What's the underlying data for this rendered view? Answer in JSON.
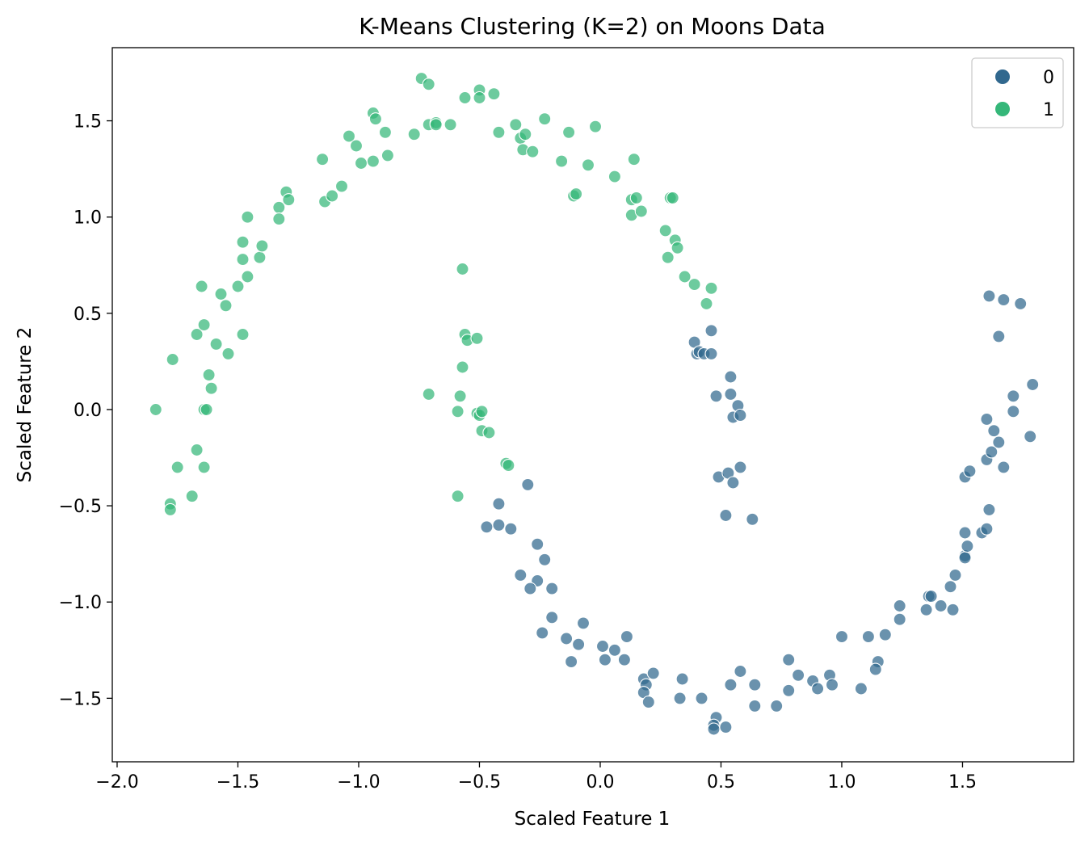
{
  "chart_data": {
    "type": "scatter",
    "title": "K-Means Clustering (K=2) on Moons Data",
    "xlabel": "Scaled Feature 1",
    "ylabel": "Scaled Feature 2",
    "xlim": [
      -2.02,
      1.96
    ],
    "ylim": [
      -1.83,
      1.88
    ],
    "xticks": [
      -2.0,
      -1.5,
      -1.0,
      -0.5,
      0.0,
      0.5,
      1.0,
      1.5
    ],
    "xtick_labels": [
      "−2.0",
      "−1.5",
      "−1.0",
      "−0.5",
      "0.0",
      "0.5",
      "1.0",
      "1.5"
    ],
    "yticks": [
      -1.5,
      -1.0,
      -0.5,
      0.0,
      0.5,
      1.0,
      1.5
    ],
    "ytick_labels": [
      "−1.5",
      "−1.0",
      "−0.5",
      "0.0",
      "0.5",
      "1.0",
      "1.5"
    ],
    "grid": false,
    "legend": {
      "position": "top-right",
      "entries": [
        "0",
        "1"
      ]
    },
    "series": [
      {
        "name": "0",
        "color": "#31688e",
        "points": [
          [
            0.39,
            0.35
          ],
          [
            0.46,
            0.41
          ],
          [
            0.4,
            0.29
          ],
          [
            0.41,
            0.3
          ],
          [
            0.43,
            0.29
          ],
          [
            0.46,
            0.29
          ],
          [
            0.54,
            0.17
          ],
          [
            0.48,
            0.07
          ],
          [
            0.54,
            0.08
          ],
          [
            0.57,
            0.02
          ],
          [
            0.55,
            -0.04
          ],
          [
            0.58,
            -0.03
          ],
          [
            0.49,
            -0.35
          ],
          [
            0.53,
            -0.33
          ],
          [
            0.58,
            -0.3
          ],
          [
            0.55,
            -0.38
          ],
          [
            0.52,
            -0.55
          ],
          [
            0.63,
            -0.57
          ],
          [
            -0.3,
            -0.39
          ],
          [
            -0.42,
            -0.49
          ],
          [
            -0.47,
            -0.61
          ],
          [
            -0.42,
            -0.6
          ],
          [
            -0.37,
            -0.62
          ],
          [
            -0.26,
            -0.7
          ],
          [
            -0.23,
            -0.78
          ],
          [
            -0.33,
            -0.86
          ],
          [
            -0.26,
            -0.89
          ],
          [
            -0.29,
            -0.93
          ],
          [
            -0.2,
            -0.93
          ],
          [
            -0.2,
            -1.08
          ],
          [
            -0.24,
            -1.16
          ],
          [
            -0.14,
            -1.19
          ],
          [
            -0.07,
            -1.11
          ],
          [
            -0.09,
            -1.22
          ],
          [
            -0.12,
            -1.31
          ],
          [
            0.01,
            -1.23
          ],
          [
            0.06,
            -1.25
          ],
          [
            0.11,
            -1.18
          ],
          [
            0.02,
            -1.3
          ],
          [
            0.1,
            -1.3
          ],
          [
            0.18,
            -1.4
          ],
          [
            0.22,
            -1.37
          ],
          [
            0.19,
            -1.43
          ],
          [
            0.18,
            -1.47
          ],
          [
            0.2,
            -1.52
          ],
          [
            0.34,
            -1.4
          ],
          [
            0.33,
            -1.5
          ],
          [
            0.42,
            -1.5
          ],
          [
            0.48,
            -1.6
          ],
          [
            0.47,
            -1.64
          ],
          [
            0.47,
            -1.66
          ],
          [
            0.52,
            -1.65
          ],
          [
            0.54,
            -1.43
          ],
          [
            0.58,
            -1.36
          ],
          [
            0.64,
            -1.43
          ],
          [
            0.64,
            -1.54
          ],
          [
            0.73,
            -1.54
          ],
          [
            0.78,
            -1.3
          ],
          [
            0.82,
            -1.38
          ],
          [
            0.78,
            -1.46
          ],
          [
            0.88,
            -1.41
          ],
          [
            0.9,
            -1.45
          ],
          [
            0.95,
            -1.38
          ],
          [
            0.96,
            -1.43
          ],
          [
            1.0,
            -1.18
          ],
          [
            1.08,
            -1.45
          ],
          [
            1.11,
            -1.18
          ],
          [
            1.15,
            -1.31
          ],
          [
            1.14,
            -1.35
          ],
          [
            1.18,
            -1.17
          ],
          [
            1.24,
            -1.02
          ],
          [
            1.24,
            -1.09
          ],
          [
            1.35,
            -1.04
          ],
          [
            1.36,
            -0.97
          ],
          [
            1.37,
            -0.97
          ],
          [
            1.41,
            -1.02
          ],
          [
            1.45,
            -0.92
          ],
          [
            1.46,
            -1.04
          ],
          [
            1.47,
            -0.86
          ],
          [
            1.51,
            -0.76
          ],
          [
            1.51,
            -0.77
          ],
          [
            1.51,
            -0.64
          ],
          [
            1.52,
            -0.71
          ],
          [
            1.51,
            -0.35
          ],
          [
            1.53,
            -0.32
          ],
          [
            1.58,
            -0.64
          ],
          [
            1.6,
            -0.62
          ],
          [
            1.61,
            -0.52
          ],
          [
            1.6,
            -0.26
          ],
          [
            1.62,
            -0.22
          ],
          [
            1.65,
            -0.17
          ],
          [
            1.67,
            -0.3
          ],
          [
            1.6,
            -0.05
          ],
          [
            1.63,
            -0.11
          ],
          [
            1.71,
            0.07
          ],
          [
            1.71,
            -0.01
          ],
          [
            1.78,
            -0.14
          ],
          [
            1.79,
            0.13
          ],
          [
            1.65,
            0.38
          ],
          [
            1.61,
            0.59
          ],
          [
            1.67,
            0.57
          ],
          [
            1.74,
            0.55
          ]
        ]
      },
      {
        "name": "1",
        "color": "#35b779",
        "points": [
          [
            -1.84,
            0.0
          ],
          [
            -1.77,
            0.26
          ],
          [
            -1.78,
            -0.49
          ],
          [
            -1.78,
            -0.52
          ],
          [
            -1.75,
            -0.3
          ],
          [
            -1.69,
            -0.45
          ],
          [
            -1.67,
            -0.21
          ],
          [
            -1.67,
            0.39
          ],
          [
            -1.65,
            0.64
          ],
          [
            -1.64,
            0.44
          ],
          [
            -1.64,
            -0.3
          ],
          [
            -1.64,
            0.0
          ],
          [
            -1.63,
            0.0
          ],
          [
            -1.62,
            0.18
          ],
          [
            -1.61,
            0.11
          ],
          [
            -1.59,
            0.34
          ],
          [
            -1.57,
            0.6
          ],
          [
            -1.55,
            0.54
          ],
          [
            -1.54,
            0.29
          ],
          [
            -1.5,
            0.64
          ],
          [
            -1.48,
            0.78
          ],
          [
            -1.48,
            0.87
          ],
          [
            -1.48,
            0.39
          ],
          [
            -1.46,
            0.69
          ],
          [
            -1.46,
            1.0
          ],
          [
            -1.41,
            0.79
          ],
          [
            -1.4,
            0.85
          ],
          [
            -1.33,
            1.05
          ],
          [
            -1.33,
            0.99
          ],
          [
            -1.3,
            1.13
          ],
          [
            -1.29,
            1.09
          ],
          [
            -1.15,
            1.3
          ],
          [
            -1.14,
            1.08
          ],
          [
            -1.11,
            1.11
          ],
          [
            -1.07,
            1.16
          ],
          [
            -1.04,
            1.42
          ],
          [
            -1.01,
            1.37
          ],
          [
            -0.99,
            1.28
          ],
          [
            -0.94,
            1.54
          ],
          [
            -0.93,
            1.51
          ],
          [
            -0.94,
            1.29
          ],
          [
            -0.89,
            1.44
          ],
          [
            -0.88,
            1.32
          ],
          [
            -0.77,
            1.43
          ],
          [
            -0.74,
            1.72
          ],
          [
            -0.71,
            1.69
          ],
          [
            -0.71,
            1.48
          ],
          [
            -0.68,
            1.49
          ],
          [
            -0.68,
            1.48
          ],
          [
            -0.62,
            1.48
          ],
          [
            -0.56,
            1.62
          ],
          [
            -0.5,
            1.66
          ],
          [
            -0.5,
            1.62
          ],
          [
            -0.44,
            1.64
          ],
          [
            -0.42,
            1.44
          ],
          [
            -0.35,
            1.48
          ],
          [
            -0.33,
            1.41
          ],
          [
            -0.32,
            1.35
          ],
          [
            -0.31,
            1.43
          ],
          [
            -0.28,
            1.34
          ],
          [
            -0.23,
            1.51
          ],
          [
            -0.16,
            1.29
          ],
          [
            -0.13,
            1.44
          ],
          [
            -0.11,
            1.11
          ],
          [
            -0.1,
            1.12
          ],
          [
            -0.05,
            1.27
          ],
          [
            -0.02,
            1.47
          ],
          [
            0.06,
            1.21
          ],
          [
            0.14,
            1.3
          ],
          [
            0.13,
            1.09
          ],
          [
            0.13,
            1.01
          ],
          [
            0.15,
            1.1
          ],
          [
            0.17,
            1.03
          ],
          [
            0.27,
            0.93
          ],
          [
            0.29,
            1.1
          ],
          [
            0.3,
            1.1
          ],
          [
            0.31,
            0.88
          ],
          [
            0.32,
            0.84
          ],
          [
            0.28,
            0.79
          ],
          [
            0.35,
            0.69
          ],
          [
            0.39,
            0.65
          ],
          [
            0.44,
            0.55
          ],
          [
            0.46,
            0.63
          ],
          [
            -0.57,
            0.73
          ],
          [
            -0.56,
            0.39
          ],
          [
            -0.55,
            0.36
          ],
          [
            -0.51,
            0.37
          ],
          [
            -0.57,
            0.22
          ],
          [
            -0.71,
            0.08
          ],
          [
            -0.58,
            0.07
          ],
          [
            -0.59,
            -0.01
          ],
          [
            -0.51,
            -0.02
          ],
          [
            -0.5,
            -0.03
          ],
          [
            -0.49,
            -0.01
          ],
          [
            -0.49,
            -0.11
          ],
          [
            -0.46,
            -0.12
          ],
          [
            -0.39,
            -0.28
          ],
          [
            -0.38,
            -0.29
          ],
          [
            -0.59,
            -0.45
          ]
        ]
      }
    ]
  }
}
